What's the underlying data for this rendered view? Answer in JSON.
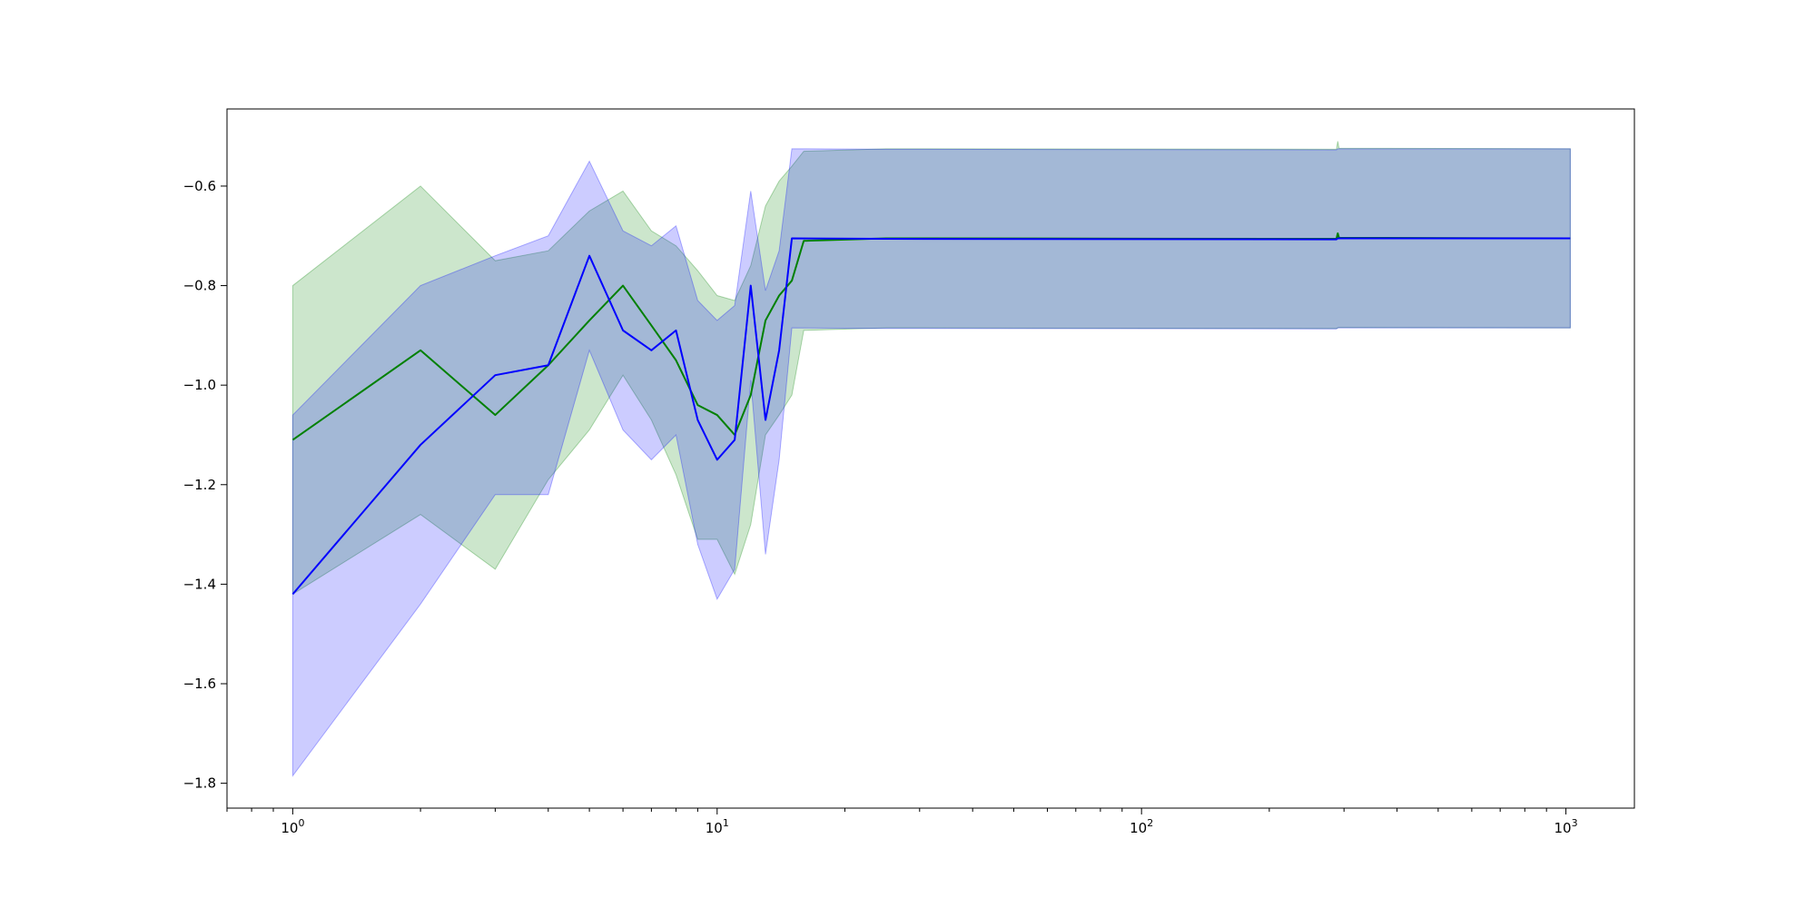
{
  "chart_data": {
    "type": "line",
    "title": "",
    "xlabel": "",
    "ylabel": "",
    "x_scale": "log",
    "xlim": [
      0.7,
      1450
    ],
    "ylim": [
      -1.85,
      -0.445
    ],
    "grid": false,
    "legend": "none",
    "x_ticks": [
      {
        "value": 1,
        "base": "10",
        "exp": "0"
      },
      {
        "value": 10,
        "base": "10",
        "exp": "1"
      },
      {
        "value": 100,
        "base": "10",
        "exp": "2"
      },
      {
        "value": 1000,
        "base": "10",
        "exp": "3"
      }
    ],
    "y_ticks": [
      {
        "value": -0.6,
        "label": "−0.6"
      },
      {
        "value": -0.8,
        "label": "−0.8"
      },
      {
        "value": -1.0,
        "label": "−1.0"
      },
      {
        "value": -1.2,
        "label": "−1.2"
      },
      {
        "value": -1.4,
        "label": "−1.4"
      },
      {
        "value": -1.6,
        "label": "−1.6"
      },
      {
        "value": -1.8,
        "label": "−1.8"
      }
    ],
    "series": [
      {
        "color": "#008000",
        "band_color": "#008000",
        "band_opacity": 0.2,
        "points": [
          {
            "x": 1,
            "y": -1.11,
            "lo": -1.42,
            "hi": -0.8
          },
          {
            "x": 2,
            "y": -0.93,
            "lo": -1.26,
            "hi": -0.6
          },
          {
            "x": 3,
            "y": -1.06,
            "lo": -1.37,
            "hi": -0.75
          },
          {
            "x": 4,
            "y": -0.96,
            "lo": -1.19,
            "hi": -0.73
          },
          {
            "x": 5,
            "y": -0.87,
            "lo": -1.09,
            "hi": -0.65
          },
          {
            "x": 6,
            "y": -0.8,
            "lo": -0.98,
            "hi": -0.61
          },
          {
            "x": 7,
            "y": -0.88,
            "lo": -1.07,
            "hi": -0.69
          },
          {
            "x": 8,
            "y": -0.95,
            "lo": -1.18,
            "hi": -0.72
          },
          {
            "x": 9,
            "y": -1.04,
            "lo": -1.31,
            "hi": -0.77
          },
          {
            "x": 10,
            "y": -1.06,
            "lo": -1.31,
            "hi": -0.82
          },
          {
            "x": 11,
            "y": -1.1,
            "lo": -1.38,
            "hi": -0.83
          },
          {
            "x": 12,
            "y": -1.02,
            "lo": -1.28,
            "hi": -0.76
          },
          {
            "x": 13,
            "y": -0.87,
            "lo": -1.1,
            "hi": -0.64
          },
          {
            "x": 14,
            "y": -0.82,
            "lo": -1.06,
            "hi": -0.59
          },
          {
            "x": 15,
            "y": -0.79,
            "lo": -1.02,
            "hi": -0.56
          },
          {
            "x": 16,
            "y": -0.71,
            "lo": -0.89,
            "hi": -0.53
          },
          {
            "x": 25,
            "y": -0.705,
            "lo": -0.885,
            "hi": -0.525
          },
          {
            "x": 288,
            "y": -0.706,
            "lo": -0.886,
            "hi": -0.526
          },
          {
            "x": 290,
            "y": -0.695,
            "lo": -0.885,
            "hi": -0.51
          },
          {
            "x": 292,
            "y": -0.704,
            "lo": -0.884,
            "hi": -0.524
          },
          {
            "x": 1024,
            "y": -0.705,
            "lo": -0.885,
            "hi": -0.525
          }
        ]
      },
      {
        "color": "#0000ff",
        "band_color": "#0000ff",
        "band_opacity": 0.2,
        "points": [
          {
            "x": 1,
            "y": -1.42,
            "lo": -1.785,
            "hi": -1.06
          },
          {
            "x": 2,
            "y": -1.12,
            "lo": -1.44,
            "hi": -0.8
          },
          {
            "x": 3,
            "y": -0.98,
            "lo": -1.22,
            "hi": -0.74
          },
          {
            "x": 4,
            "y": -0.96,
            "lo": -1.22,
            "hi": -0.7
          },
          {
            "x": 5,
            "y": -0.74,
            "lo": -0.93,
            "hi": -0.55
          },
          {
            "x": 6,
            "y": -0.89,
            "lo": -1.09,
            "hi": -0.69
          },
          {
            "x": 7,
            "y": -0.93,
            "lo": -1.15,
            "hi": -0.72
          },
          {
            "x": 8,
            "y": -0.89,
            "lo": -1.1,
            "hi": -0.68
          },
          {
            "x": 9,
            "y": -1.07,
            "lo": -1.32,
            "hi": -0.83
          },
          {
            "x": 10,
            "y": -1.15,
            "lo": -1.43,
            "hi": -0.87
          },
          {
            "x": 11,
            "y": -1.11,
            "lo": -1.37,
            "hi": -0.84
          },
          {
            "x": 12,
            "y": -0.8,
            "lo": -0.99,
            "hi": -0.61
          },
          {
            "x": 13,
            "y": -1.07,
            "lo": -1.34,
            "hi": -0.81
          },
          {
            "x": 14,
            "y": -0.93,
            "lo": -1.15,
            "hi": -0.73
          },
          {
            "x": 15,
            "y": -0.705,
            "lo": -0.885,
            "hi": -0.525
          },
          {
            "x": 25,
            "y": -0.706,
            "lo": -0.886,
            "hi": -0.526
          },
          {
            "x": 288,
            "y": -0.707,
            "lo": -0.887,
            "hi": -0.527
          },
          {
            "x": 290,
            "y": -0.705,
            "lo": -0.885,
            "hi": -0.525
          },
          {
            "x": 1024,
            "y": -0.705,
            "lo": -0.885,
            "hi": -0.525
          }
        ]
      }
    ]
  }
}
